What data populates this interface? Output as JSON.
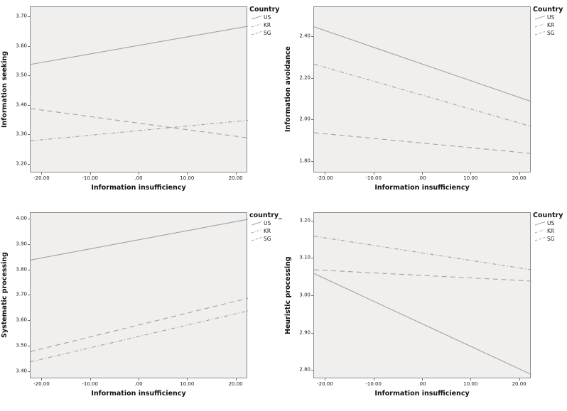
{
  "figure": {
    "background": "#ffffff",
    "plot_background": "#f0efed",
    "frame_color": "#8a8a8a",
    "line_color": "#a2a2a2",
    "text_color": "#1a1a1a"
  },
  "chart_data": [
    {
      "type": "line",
      "position": "top-left",
      "ylabel": "Information seeking",
      "xlabel": "Information insufficiency",
      "legend_title": "Country",
      "legend_position": "top-right-outside",
      "grid": false,
      "xlim": [
        -22.4,
        22.4
      ],
      "ylim": [
        3.17,
        3.735
      ],
      "x_ticks": [
        {
          "value": -20,
          "label": "-20.00"
        },
        {
          "value": -10,
          "label": "-10.00"
        },
        {
          "value": 0,
          "label": ".00"
        },
        {
          "value": 10,
          "label": "10.00"
        },
        {
          "value": 20,
          "label": "20.00"
        }
      ],
      "y_ticks": [
        {
          "value": 3.7,
          "label": "3.70"
        },
        {
          "value": 3.6,
          "label": "3.60"
        },
        {
          "value": 3.5,
          "label": "3.50"
        },
        {
          "value": 3.4,
          "label": "3.40"
        },
        {
          "value": 3.3,
          "label": "3.30"
        },
        {
          "value": 3.2,
          "label": "3.20"
        }
      ],
      "series": [
        {
          "name": "US",
          "style": "solid",
          "x": [
            -22.4,
            22.4
          ],
          "y": [
            3.54,
            3.67
          ]
        },
        {
          "name": "KR",
          "style": "dashdot",
          "x": [
            -22.4,
            22.4
          ],
          "y": [
            3.28,
            3.35
          ]
        },
        {
          "name": "SG",
          "style": "dashed",
          "x": [
            -22.4,
            22.4
          ],
          "y": [
            3.39,
            3.29
          ]
        }
      ]
    },
    {
      "type": "line",
      "position": "top-right",
      "ylabel": "Information avoidance",
      "xlabel": "Information insufficiency",
      "legend_title": "Country",
      "legend_position": "top-right-outside",
      "grid": false,
      "xlim": [
        -22.4,
        22.4
      ],
      "ylim": [
        1.745,
        2.545
      ],
      "x_ticks": [
        {
          "value": -20,
          "label": "-20.00"
        },
        {
          "value": -10,
          "label": "-10.00"
        },
        {
          "value": 0,
          "label": ".00"
        },
        {
          "value": 10,
          "label": "10.00"
        },
        {
          "value": 20,
          "label": "20.00"
        }
      ],
      "y_ticks": [
        {
          "value": 2.4,
          "label": "2.40"
        },
        {
          "value": 2.2,
          "label": "2.20"
        },
        {
          "value": 2.0,
          "label": "2.00"
        },
        {
          "value": 1.8,
          "label": "1.80"
        }
      ],
      "series": [
        {
          "name": "US",
          "style": "solid",
          "x": [
            -22.4,
            22.4
          ],
          "y": [
            2.45,
            2.09
          ]
        },
        {
          "name": "KR",
          "style": "dashdot",
          "x": [
            -22.4,
            22.4
          ],
          "y": [
            2.27,
            1.97
          ]
        },
        {
          "name": "SG",
          "style": "dashed",
          "x": [
            -22.4,
            22.4
          ],
          "y": [
            1.94,
            1.84
          ]
        }
      ]
    },
    {
      "type": "line",
      "position": "bottom-left",
      "ylabel": "Systematic processing",
      "xlabel": "Information insufficiency",
      "legend_title": "country_",
      "legend_position": "top-right-outside",
      "grid": false,
      "xlim": [
        -22.4,
        22.4
      ],
      "ylim": [
        3.372,
        4.025
      ],
      "x_ticks": [
        {
          "value": -20,
          "label": "-20.00"
        },
        {
          "value": -10,
          "label": "-10.00"
        },
        {
          "value": 0,
          "label": ".00"
        },
        {
          "value": 10,
          "label": "10.00"
        },
        {
          "value": 20,
          "label": "20.00"
        }
      ],
      "y_ticks": [
        {
          "value": 4.0,
          "label": "4.00"
        },
        {
          "value": 3.9,
          "label": "3.90"
        },
        {
          "value": 3.8,
          "label": "3.80"
        },
        {
          "value": 3.7,
          "label": "3.70"
        },
        {
          "value": 3.6,
          "label": "3.60"
        },
        {
          "value": 3.5,
          "label": "3.50"
        },
        {
          "value": 3.4,
          "label": "3.40"
        }
      ],
      "series": [
        {
          "name": "US",
          "style": "solid",
          "x": [
            -22.4,
            22.4
          ],
          "y": [
            3.84,
            4.0
          ]
        },
        {
          "name": "KR",
          "style": "dashdot",
          "x": [
            -22.4,
            22.4
          ],
          "y": [
            3.44,
            3.64
          ]
        },
        {
          "name": "SG",
          "style": "dashed",
          "x": [
            -22.4,
            22.4
          ],
          "y": [
            3.48,
            3.69
          ]
        }
      ]
    },
    {
      "type": "line",
      "position": "bottom-right",
      "ylabel": "Heuristic processing",
      "xlabel": "Information insufficiency",
      "legend_title": "Country",
      "legend_position": "top-right-outside",
      "grid": false,
      "xlim": [
        -22.4,
        22.4
      ],
      "ylim": [
        2.778,
        3.222
      ],
      "x_ticks": [
        {
          "value": -20,
          "label": "-20.00"
        },
        {
          "value": -10,
          "label": "-10.00"
        },
        {
          "value": 0,
          "label": ".00"
        },
        {
          "value": 10,
          "label": "10.00"
        },
        {
          "value": 20,
          "label": "20.00"
        }
      ],
      "y_ticks": [
        {
          "value": 3.2,
          "label": "3.20"
        },
        {
          "value": 3.1,
          "label": "3.10"
        },
        {
          "value": 3.0,
          "label": "3.00"
        },
        {
          "value": 2.9,
          "label": "2.90"
        },
        {
          "value": 2.8,
          "label": "2.80"
        }
      ],
      "series": [
        {
          "name": "US",
          "style": "solid",
          "x": [
            -22.4,
            22.4
          ],
          "y": [
            3.06,
            2.79
          ]
        },
        {
          "name": "KR",
          "style": "dashdot",
          "x": [
            -22.4,
            22.4
          ],
          "y": [
            3.16,
            3.07
          ]
        },
        {
          "name": "SG",
          "style": "dashed",
          "x": [
            -22.4,
            22.4
          ],
          "y": [
            3.07,
            3.04
          ]
        }
      ]
    }
  ]
}
